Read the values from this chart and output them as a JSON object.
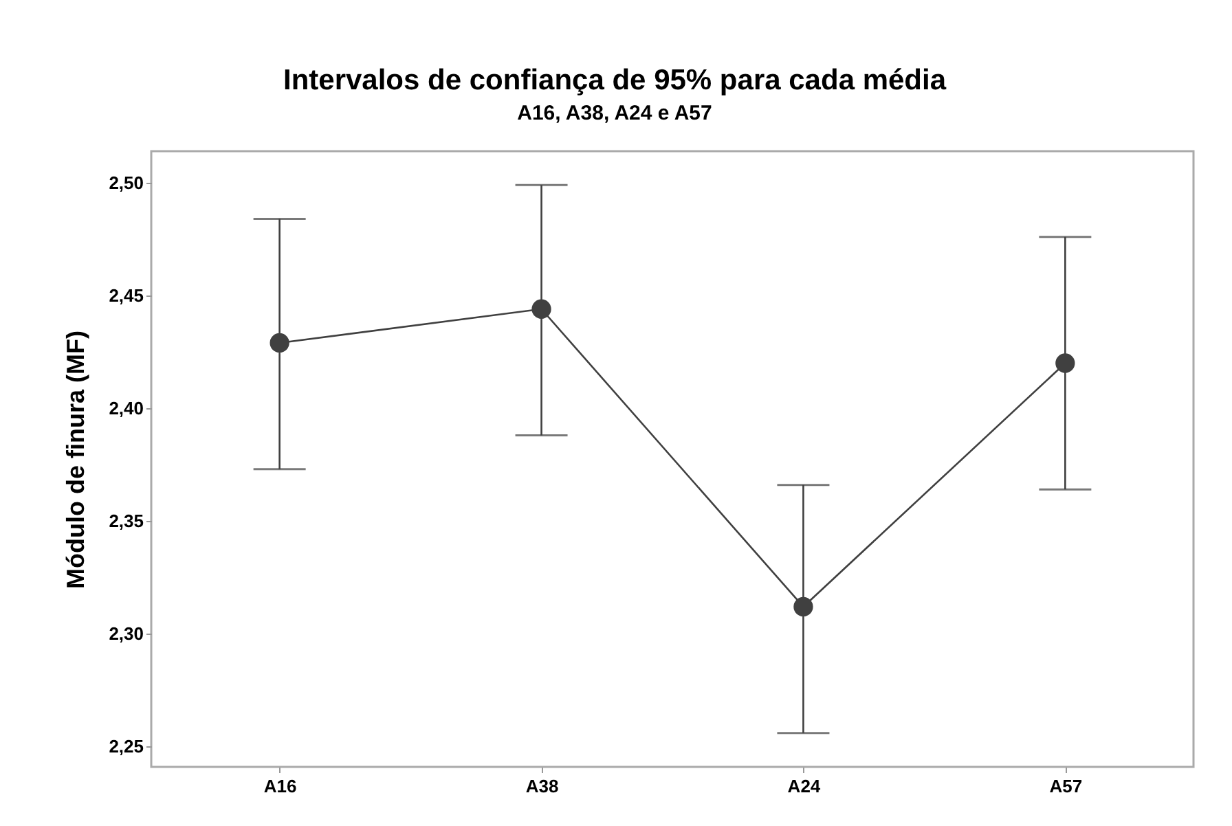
{
  "chart_data": {
    "type": "line",
    "title": "Intervalos de confiança de 95% para cada média",
    "subtitle": "A16, A38, A24 e A57",
    "ylabel": "Módulo de finura (MF)",
    "categories": [
      "A16",
      "A38",
      "A24",
      "A57"
    ],
    "series": [
      {
        "color": "#404040",
        "values": [
          2.429,
          2.444,
          2.312,
          2.42
        ],
        "errors": [
          [
            2.373,
            2.484
          ],
          [
            2.388,
            2.499
          ],
          [
            2.256,
            2.366
          ],
          [
            2.364,
            2.476
          ]
        ]
      }
    ],
    "ylim": [
      2.241,
      2.514
    ],
    "yticks": [
      {
        "value": 2.25,
        "label": "2,25"
      },
      {
        "value": 2.3,
        "label": "2,30"
      },
      {
        "value": 2.35,
        "label": "2,35"
      },
      {
        "value": 2.4,
        "label": "2,40"
      },
      {
        "value": 2.45,
        "label": "2,45"
      },
      {
        "value": 2.5,
        "label": "2,50"
      }
    ],
    "marker": "circle",
    "line_style": "solid",
    "grid": false
  }
}
